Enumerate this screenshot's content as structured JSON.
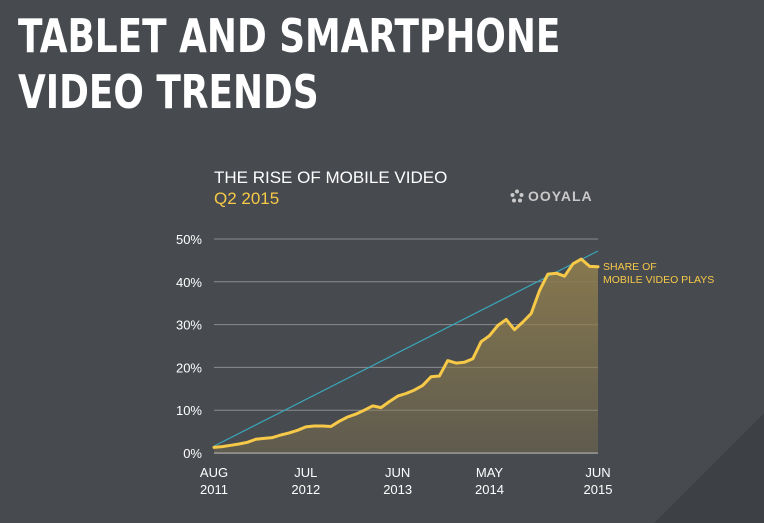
{
  "headline": {
    "line1": "TABLET AND SMARTPHONE",
    "line2": "VIDEO TRENDS"
  },
  "chart_header": {
    "subtitle": "THE RISE OF MOBILE VIDEO",
    "quarter": "Q2 2015"
  },
  "logo": {
    "icon": "ooyala-dots-icon",
    "text": "OOYALA"
  },
  "colors": {
    "background": "#474a4f",
    "title": "#ffffff",
    "accent": "#f7c948",
    "trendline": "#3aa6b9",
    "area": "#8a7a4e",
    "grid": "#8a8d91",
    "logo": "#c9c9c9"
  },
  "chart_data": {
    "type": "area",
    "title": "THE RISE OF MOBILE VIDEO",
    "subtitle": "Q2 2015",
    "xlabel": "",
    "ylabel": "",
    "ylim": [
      0,
      50
    ],
    "yticks": [
      0,
      10,
      20,
      30,
      40,
      50
    ],
    "ytick_labels": [
      "0%",
      "10%",
      "20%",
      "30%",
      "40%",
      "50%"
    ],
    "x_range": [
      0,
      46
    ],
    "xticks": [
      {
        "x": 0,
        "line1": "AUG",
        "line2": "2011"
      },
      {
        "x": 11,
        "line1": "JUL",
        "line2": "2012"
      },
      {
        "x": 22,
        "line1": "JUN",
        "line2": "2013"
      },
      {
        "x": 33,
        "line1": "MAY",
        "line2": "2014"
      },
      {
        "x": 46,
        "line1": "JUN",
        "line2": "2015"
      }
    ],
    "series": [
      {
        "name": "SHARE OF MOBILE VIDEO PLAYS",
        "label_lines": [
          "SHARE OF",
          "MOBILE VIDEO PLAYS"
        ],
        "x": [
          0,
          1,
          2,
          3,
          4,
          5,
          6,
          7,
          8,
          9,
          10,
          11,
          12,
          13,
          14,
          15,
          16,
          17,
          18,
          19,
          20,
          21,
          22,
          23,
          24,
          25,
          26,
          27,
          28,
          29,
          30,
          31,
          32,
          33,
          34,
          35,
          36,
          37,
          38,
          39,
          40,
          41,
          42,
          43,
          44,
          45,
          46
        ],
        "values": [
          1.3,
          1.5,
          1.8,
          2.1,
          2.5,
          3.2,
          3.4,
          3.6,
          4.2,
          4.7,
          5.3,
          6.1,
          6.3,
          6.3,
          6.2,
          7.4,
          8.4,
          9.1,
          10.0,
          11.0,
          10.6,
          12.0,
          13.3,
          13.9,
          14.7,
          15.8,
          17.8,
          18.0,
          21.6,
          21.0,
          21.2,
          22.0,
          26.0,
          27.4,
          29.8,
          31.2,
          28.8,
          30.6,
          32.6,
          38.0,
          41.8,
          42.0,
          41.3,
          44.2,
          45.3,
          43.6,
          43.5
        ]
      }
    ],
    "trendline": {
      "start": [
        0,
        1.6
      ],
      "end": [
        46,
        47.2
      ]
    }
  }
}
